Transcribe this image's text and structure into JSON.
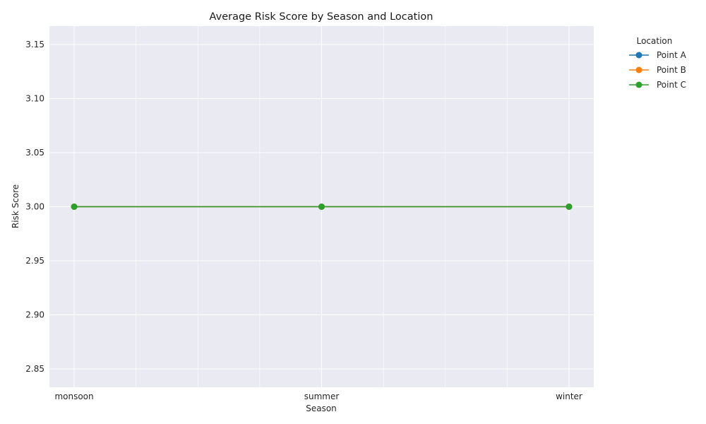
{
  "chart_data": {
    "type": "line",
    "title": "Average Risk Score by Season and Location",
    "xlabel": "Season",
    "ylabel": "Risk Score",
    "categories": [
      "monsoon",
      "summer",
      "winter"
    ],
    "ylim": [
      2.833,
      3.167
    ],
    "yticks": [
      "2.85",
      "2.90",
      "2.95",
      "3.00",
      "3.05",
      "3.10",
      "3.15"
    ],
    "ytick_values": [
      2.85,
      2.9,
      2.95,
      3.0,
      3.05,
      3.1,
      3.15
    ],
    "grid": true,
    "minor_x_grid": true,
    "legend_title": "Location",
    "legend_position": "outside-right",
    "series": [
      {
        "name": "Point A",
        "color": "#1f77b4",
        "values": [
          3.0,
          3.0,
          3.0
        ]
      },
      {
        "name": "Point B",
        "color": "#ff7f0e",
        "values": [
          3.0,
          3.0,
          3.0
        ]
      },
      {
        "name": "Point C",
        "color": "#2ca02c",
        "values": [
          3.0,
          3.0,
          3.0
        ]
      }
    ],
    "background": "#eaeaf2"
  }
}
